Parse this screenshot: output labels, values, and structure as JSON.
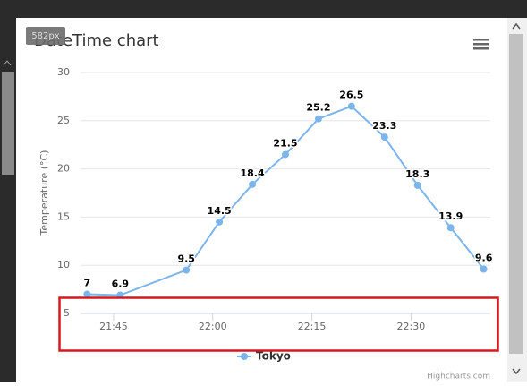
{
  "viewport_badge": "582px",
  "chart_data": {
    "type": "line",
    "title": "DateTime chart",
    "y_label": "Temperature (°C)",
    "x": [
      "21:41",
      "21:46",
      "21:56",
      "22:01",
      "22:06",
      "22:11",
      "22:16",
      "22:21",
      "22:26",
      "22:31",
      "22:36",
      "22:41"
    ],
    "xlim": [
      "21:40",
      "22:42"
    ],
    "xticks": [
      "21:45",
      "22:00",
      "22:15",
      "22:30"
    ],
    "ylim": [
      5,
      30
    ],
    "yticks": [
      5,
      10,
      15,
      20,
      25,
      30
    ],
    "grid": true,
    "series": [
      {
        "name": "Tokyo",
        "color": "#7cb5ec",
        "values": [
          7,
          6.9,
          9.5,
          14.5,
          18.4,
          21.5,
          25.2,
          26.5,
          23.3,
          18.3,
          13.9,
          9.6
        ]
      }
    ],
    "credits": "Highcharts.com"
  }
}
